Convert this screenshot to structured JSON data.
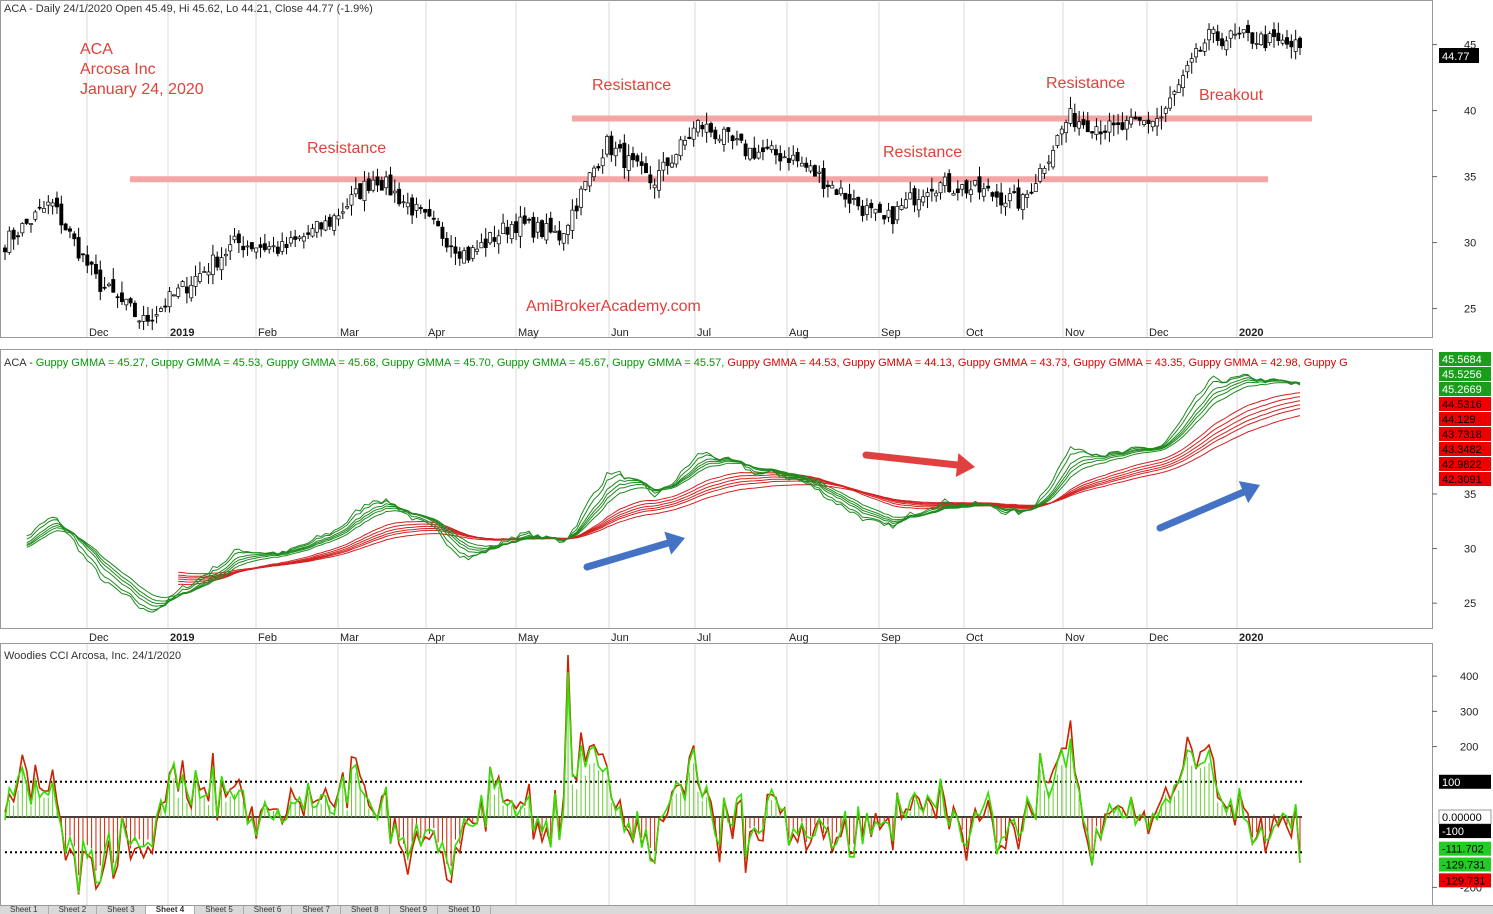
{
  "panes": {
    "price": {
      "title": "ACA - Daily 24/1/2020 Open 45.49, Hi 45.62, Lo 44.21, Close 44.77 (-1.9%)",
      "price_tag": "44.77",
      "y_ticks": [
        "45",
        "40",
        "35",
        "30",
        "25"
      ]
    },
    "gmma": {
      "title_prefix": "ACA - ",
      "legend": [
        {
          "text": "Guppy GMMA = 45.27,",
          "color": "#009900"
        },
        {
          "text": "Guppy GMMA = 45.53,",
          "color": "#009900"
        },
        {
          "text": "Guppy GMMA = 45.68,",
          "color": "#009900"
        },
        {
          "text": "Guppy GMMA = 45.70,",
          "color": "#009900"
        },
        {
          "text": "Guppy GMMA = 45.67,",
          "color": "#009900"
        },
        {
          "text": "Guppy GMMA = 45.57,",
          "color": "#009900"
        },
        {
          "text": "Guppy GMMA = 44.53,",
          "color": "#dd0000"
        },
        {
          "text": "Guppy GMMA = 44.13,",
          "color": "#dd0000"
        },
        {
          "text": "Guppy GMMA = 43.73,",
          "color": "#dd0000"
        },
        {
          "text": "Guppy GMMA = 43.35,",
          "color": "#dd0000"
        },
        {
          "text": "Guppy GMMA = 42.98,",
          "color": "#dd0000"
        },
        {
          "text": "Guppy G",
          "color": "#dd0000"
        }
      ],
      "tags": [
        {
          "text": "45.5684",
          "bg": "#1a9e1a"
        },
        {
          "text": "45.5256",
          "bg": "#1a9e1a"
        },
        {
          "text": "45.2669",
          "bg": "#1a9e1a"
        },
        {
          "text": "44.5316",
          "bg": "#ee0000"
        },
        {
          "text": "44.129",
          "bg": "#ee0000"
        },
        {
          "text": "43.7318",
          "bg": "#ee0000"
        },
        {
          "text": "43.3482",
          "bg": "#ee0000"
        },
        {
          "text": "42.9822",
          "bg": "#ee0000"
        },
        {
          "text": "42.3091",
          "bg": "#ee0000"
        }
      ],
      "y_ticks": [
        "35",
        "30",
        "25"
      ]
    },
    "cci": {
      "title": "Woodies CCI  Arcosa, Inc. 24/1/2020",
      "y_ticks": [
        "400",
        "300",
        "200",
        "-200"
      ],
      "tags": [
        {
          "text": "100",
          "bg": "#000000",
          "fg": "#ffffff",
          "v": 100
        },
        {
          "text": "0.00000",
          "bg": "#ffffff",
          "fg": "#000000",
          "v": 0
        },
        {
          "text": "-100",
          "bg": "#000000",
          "fg": "#ffffff",
          "v": -40
        },
        {
          "text": "-111.702",
          "bg": "#22cc22",
          "fg": "#000000",
          "v": -90
        },
        {
          "text": "-129.731",
          "bg": "#22cc22",
          "fg": "#000000",
          "v": -135
        },
        {
          "text": "-129.731",
          "bg": "#ee0000",
          "fg": "#000000",
          "v": -180
        }
      ]
    }
  },
  "months": [
    "Dec",
    "2019",
    "Feb",
    "Mar",
    "Apr",
    "May",
    "Jun",
    "Jul",
    "Aug",
    "Sep",
    "Oct",
    "Nov",
    "Dec",
    "2020"
  ],
  "annotations": {
    "symbol": "ACA",
    "company": "Arcosa Inc",
    "date": "January 24, 2020",
    "resistance_1": "Resistance",
    "resistance_2": "Resistance",
    "resistance_3": "Resistance",
    "resistance_4": "Resistance",
    "breakout": "Breakout",
    "watermark": "AmiBrokerAcademy.com"
  },
  "sheet_tabs": [
    "Sheet 1",
    "Sheet 2",
    "Sheet 3",
    "Sheet 4",
    "Sheet 5",
    "Sheet 6",
    "Sheet 7",
    "Sheet 8",
    "Sheet 9",
    "Sheet 10"
  ],
  "colors": {
    "bg": "#ffffff",
    "grid": "#d9d9d9",
    "resistance_line": "#f4a6a6",
    "annotation_text": "#e0413a",
    "gmma_short": "#1e8a1e",
    "gmma_long": "#d42020",
    "cci_histogram": "#66cc33",
    "cci_line_green": "#33dd00",
    "cci_line_red": "#cc2200",
    "arrow_blue": "#4472c4",
    "arrow_red": "#e04040"
  },
  "chart_data": [
    {
      "type": "candlestick",
      "title": "ACA - Daily 24/1/2020 Open 45.49, Hi 45.62, Lo 44.21, Close 44.77 (-1.9%)",
      "x_period": [
        "2018-11",
        "2020-01"
      ],
      "ylim": [
        23,
        48
      ],
      "last": {
        "open": 45.49,
        "high": 45.62,
        "low": 44.21,
        "close": 44.77
      },
      "close_path": [
        {
          "x": "2018-11",
          "y": 30
        },
        {
          "x": "2018-11",
          "y": 33
        },
        {
          "x": "2018-12",
          "y": 27
        },
        {
          "x": "2018-12",
          "y": 24
        },
        {
          "x": "2019-01",
          "y": 27
        },
        {
          "x": "2019-01",
          "y": 30
        },
        {
          "x": "2019-02",
          "y": 29.5
        },
        {
          "x": "2019-02",
          "y": 31.5
        },
        {
          "x": "2019-03",
          "y": 35
        },
        {
          "x": "2019-03",
          "y": 32
        },
        {
          "x": "2019-04",
          "y": 29
        },
        {
          "x": "2019-04",
          "y": 31.5
        },
        {
          "x": "2019-05",
          "y": 30.5
        },
        {
          "x": "2019-05",
          "y": 37.5
        },
        {
          "x": "2019-06",
          "y": 34.5
        },
        {
          "x": "2019-06",
          "y": 39
        },
        {
          "x": "2019-07",
          "y": 37
        },
        {
          "x": "2019-07",
          "y": 36.5
        },
        {
          "x": "2019-08",
          "y": 34
        },
        {
          "x": "2019-08",
          "y": 31.5
        },
        {
          "x": "2019-09",
          "y": 34.5
        },
        {
          "x": "2019-10",
          "y": 34
        },
        {
          "x": "2019-10",
          "y": 33
        },
        {
          "x": "2019-11",
          "y": 39.5
        },
        {
          "x": "2019-11",
          "y": 38.5
        },
        {
          "x": "2019-12",
          "y": 39.5
        },
        {
          "x": "2019-12",
          "y": 45.5
        },
        {
          "x": "2020-01",
          "y": 45.5
        },
        {
          "x": "2020-01",
          "y": 44.77
        }
      ],
      "annotations": [
        {
          "text": "Resistance",
          "y": 35
        },
        {
          "text": "Resistance",
          "y": 39.5
        },
        {
          "text": "Resistance",
          "y": 35
        },
        {
          "text": "Resistance",
          "y": 39.5
        },
        {
          "text": "Breakout",
          "y": 39.5
        }
      ],
      "horizontal_lines": [
        {
          "name": "Resistance",
          "y": 34.8
        },
        {
          "name": "Resistance",
          "y": 39.4
        }
      ]
    },
    {
      "type": "line",
      "title": "Guppy GMMA",
      "ylim": [
        23,
        48
      ],
      "series": [
        {
          "name": "Guppy GMMA short",
          "color": "#1e8a1e",
          "last_values": [
            45.5684,
            45.5256,
            45.2669
          ]
        },
        {
          "name": "Guppy GMMA long",
          "color": "#d42020",
          "last_values": [
            44.5316,
            44.129,
            43.7318,
            43.3482,
            42.9822,
            42.3091
          ]
        }
      ]
    },
    {
      "type": "line",
      "title": "Woodies CCI  Arcosa, Inc. 24/1/2020",
      "ylim": [
        -250,
        480
      ],
      "levels": [
        100,
        0,
        -100
      ],
      "peak": 460,
      "last": [
        -111.702,
        -129.731
      ]
    }
  ]
}
